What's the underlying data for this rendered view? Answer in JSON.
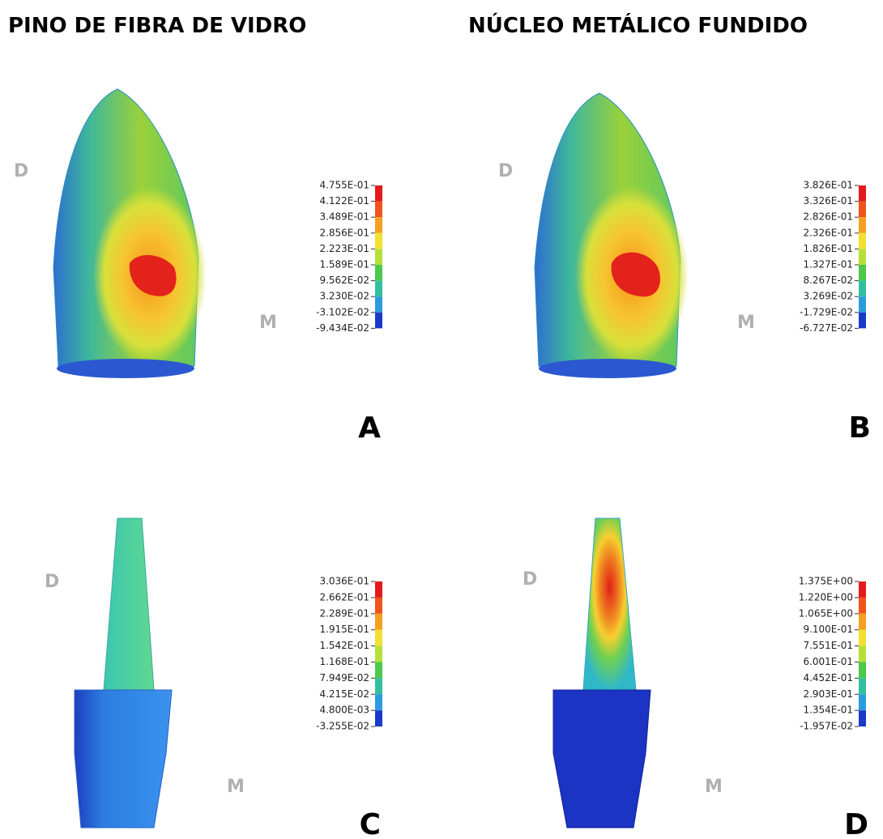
{
  "titles": [
    "PINO DE FIBRA DE VIDRO",
    "NÚCLEO METÁLICO FUNDIDO"
  ],
  "panels": [
    {
      "letter": "A",
      "left_label": "D",
      "right_label": "M",
      "legend": [
        "4.755E-01",
        "4.122E-01",
        "3.489E-01",
        "2.856E-01",
        "2.223E-01",
        "1.589E-01",
        "9.562E-02",
        "3.230E-02",
        "-3.102E-02",
        "-9.434E-02"
      ]
    },
    {
      "letter": "B",
      "left_label": "D",
      "right_label": "M",
      "legend": [
        "3.826E-01",
        "3.326E-01",
        "2.826E-01",
        "2.326E-01",
        "1.826E-01",
        "1.327E-01",
        "8.267E-02",
        "3.269E-02",
        "-1.729E-02",
        "-6.727E-02"
      ]
    },
    {
      "letter": "C",
      "left_label": "D",
      "right_label": "M",
      "legend": [
        "3.036E-01",
        "2.662E-01",
        "2.289E-01",
        "1.915E-01",
        "1.542E-01",
        "1.168E-01",
        "7.949E-02",
        "4.215E-02",
        "4.800E-03",
        "-3.255E-02"
      ]
    },
    {
      "letter": "D",
      "left_label": "D",
      "right_label": "M",
      "legend": [
        "1.375E+00",
        "1.220E+00",
        "1.065E+00",
        "9.100E-01",
        "7.551E-01",
        "6.001E-01",
        "4.452E-01",
        "2.903E-01",
        "1.354E-01",
        "-1.957E-02"
      ]
    }
  ]
}
